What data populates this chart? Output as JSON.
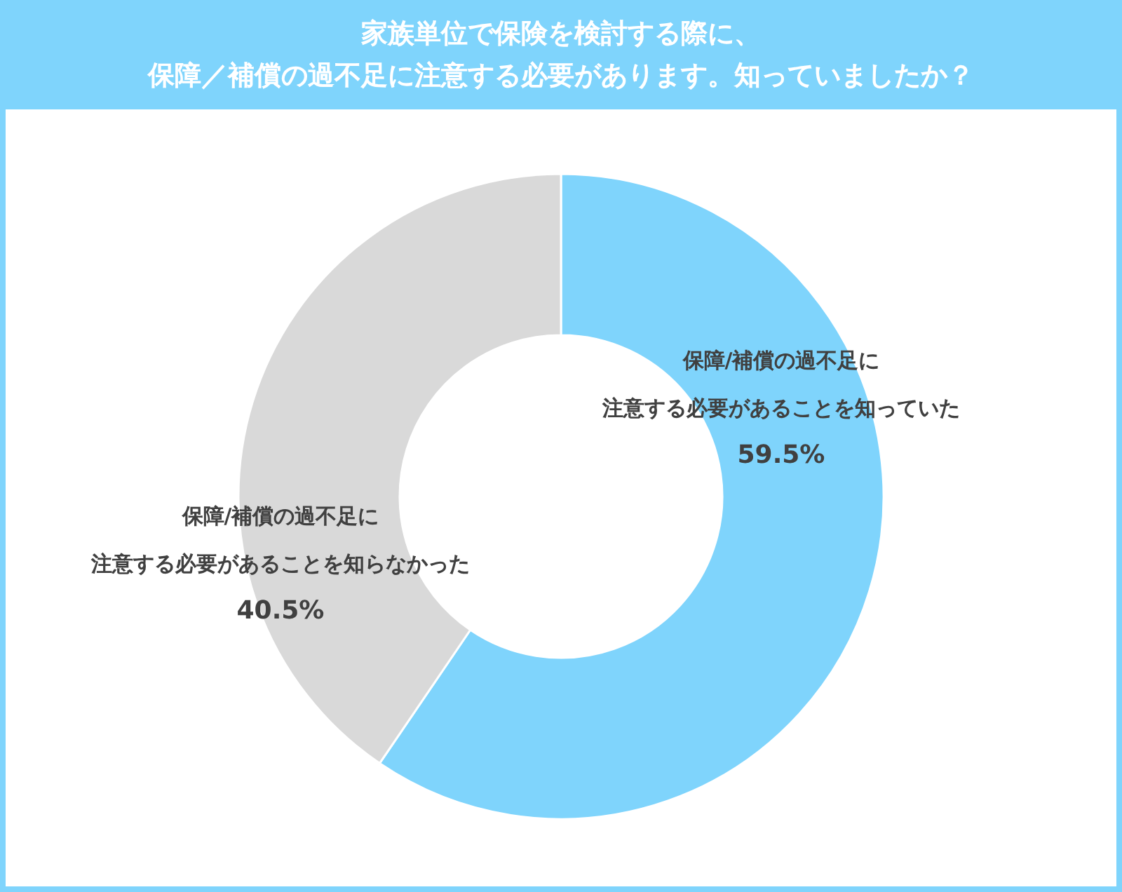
{
  "chart_data": {
    "type": "donut",
    "title": "家族単位で保険を検討する際に、保障／補償の過不足に注意する必要があります。知っていましたか？",
    "categories": [
      "保障/補償の過不足に注意する必要があることを知っていた",
      "保障/補償の過不足に注意する必要があることを知らなかった"
    ],
    "values": [
      59.5,
      40.5
    ],
    "value_labels": [
      "59.5%",
      "40.5%"
    ],
    "colors": [
      "#7fd4fc",
      "#d9d9d9"
    ]
  }
}
